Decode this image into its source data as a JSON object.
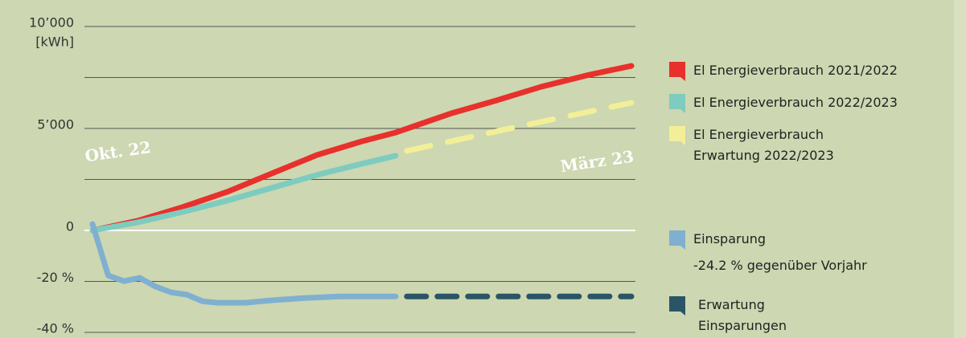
{
  "chart_data": {
    "type": "line",
    "y_label": "[kWh]",
    "ylim": [
      0,
      10000
    ],
    "yticks": [
      0,
      {
        "value": 2500,
        "label": null
      },
      {
        "value": 5000,
        "label": "5’000"
      },
      {
        "value": 7500,
        "label": null
      },
      {
        "value": 10000,
        "label": "10’000"
      }
    ],
    "y2lim": [
      -40,
      0
    ],
    "y2ticks": [
      {
        "value": -20,
        "label": "-20 %"
      },
      {
        "value": -40,
        "label": "-40 %"
      }
    ],
    "xlim": [
      0,
      24
    ],
    "grid": true,
    "annotations": [
      "Okt. 22",
      "März 23",
      "-24.2 % gegenüber Vorjahr"
    ],
    "series": [
      {
        "name": "El Energieverbrauch 2021/2022",
        "color": "#e8302c",
        "style": "solid",
        "x": [
          0,
          2,
          4,
          6,
          8,
          10,
          12,
          13.5,
          16,
          18,
          20,
          22,
          24
        ],
        "values": [
          0,
          470,
          1140,
          1890,
          2800,
          3700,
          4370,
          4800,
          5750,
          6380,
          7050,
          7600,
          8070
        ]
      },
      {
        "name": "El Energieverbrauch 2022/2023",
        "color": "#7ecbbf",
        "style": "solid",
        "x": [
          0,
          2,
          4,
          6,
          8,
          10,
          12,
          13.5
        ],
        "values": [
          0,
          390,
          900,
          1460,
          2090,
          2720,
          3270,
          3660
        ]
      },
      {
        "name": "El Energieverbrauch\nErwartung 2022/2023",
        "color": "#f2ef98",
        "style": "dashed",
        "x": [
          14,
          19,
          24
        ],
        "values": [
          3900,
          5100,
          6260
        ]
      },
      {
        "name": "Einsparung",
        "color": "#7fb0d0",
        "style": "solid",
        "axis": "y2",
        "x": [
          0,
          0.7,
          1.4,
          2.1,
          2.8,
          3.5,
          4.2,
          4.9,
          5.6,
          6.8,
          8,
          9.5,
          11,
          13.5
        ],
        "values": [
          2.5,
          -17.7,
          -19.9,
          -18.6,
          -22,
          -24.3,
          -25.2,
          -27.8,
          -28.4,
          -28.4,
          -27.4,
          -26.5,
          -25.9,
          -25.9
        ]
      },
      {
        "name": "Erwartung\nEinsparungen",
        "color": "#2a5566",
        "style": "dashed",
        "axis": "y2",
        "x": [
          14,
          24
        ],
        "values": [
          -25.9,
          -25.9
        ]
      }
    ]
  }
}
